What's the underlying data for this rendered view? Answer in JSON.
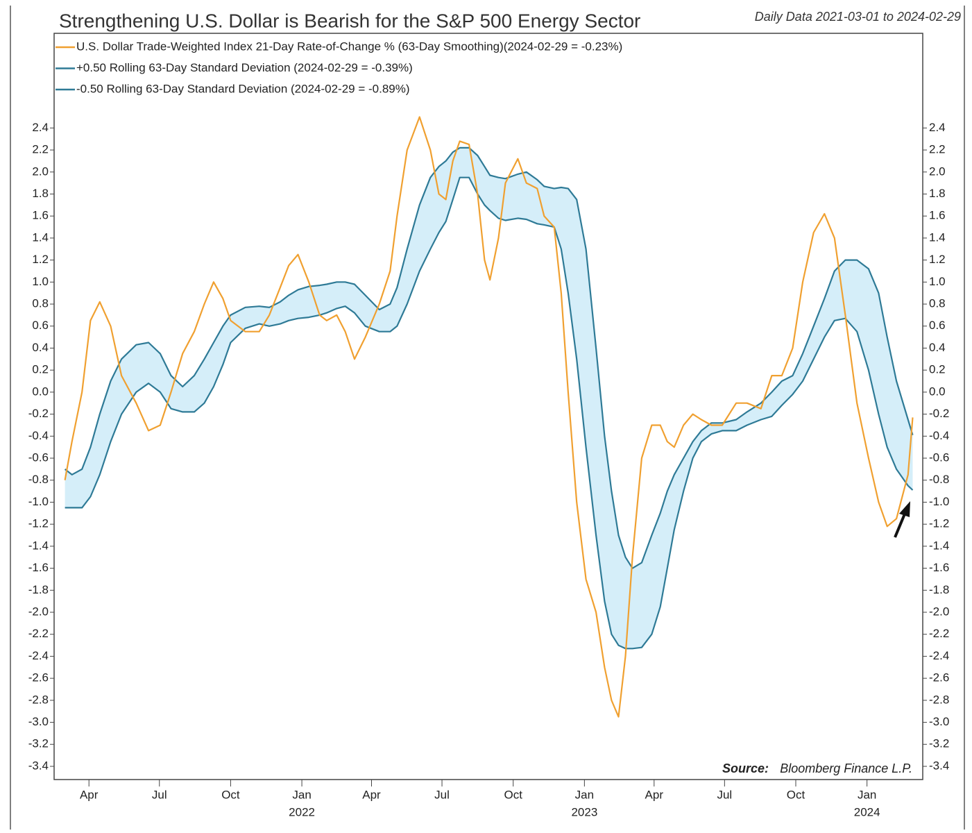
{
  "chart_data": {
    "type": "line",
    "title": "Strengthening U.S. Dollar is Bearish for the S&P 500 Energy Sector",
    "subtitle": "Daily Data 2021-03-01 to 2024-02-29",
    "source_label": "Source:",
    "source": "Bloomberg Finance L.P.",
    "x": [
      "2021-03-01",
      "2021-03-10",
      "2021-03-23",
      "2021-04-03",
      "2021-04-15",
      "2021-04-29",
      "2021-05-13",
      "2021-06-01",
      "2021-06-17",
      "2021-07-02",
      "2021-07-16",
      "2021-07-31",
      "2021-08-15",
      "2021-08-28",
      "2021-09-09",
      "2021-09-21",
      "2021-10-01",
      "2021-10-20",
      "2021-11-07",
      "2021-11-20",
      "2021-12-04",
      "2021-12-15",
      "2021-12-27",
      "2022-01-10",
      "2022-01-24",
      "2022-02-02",
      "2022-02-15",
      "2022-02-26",
      "2022-03-10",
      "2022-03-24",
      "2022-04-11",
      "2022-04-25",
      "2022-05-04",
      "2022-05-17",
      "2022-06-02",
      "2022-06-16",
      "2022-06-27",
      "2022-07-06",
      "2022-07-15",
      "2022-07-24",
      "2022-08-05",
      "2022-08-16",
      "2022-08-25",
      "2022-09-01",
      "2022-09-12",
      "2022-09-21",
      "2022-10-07",
      "2022-10-18",
      "2022-11-01",
      "2022-11-10",
      "2022-11-23",
      "2022-12-02",
      "2022-12-11",
      "2022-12-22",
      "2023-01-03",
      "2023-01-16",
      "2023-01-27",
      "2023-02-05",
      "2023-02-14",
      "2023-02-23",
      "2023-03-04",
      "2023-03-16",
      "2023-03-29",
      "2023-04-09",
      "2023-04-18",
      "2023-04-27",
      "2023-05-09",
      "2023-05-21",
      "2023-06-01",
      "2023-06-14",
      "2023-06-28",
      "2023-07-16",
      "2023-07-30",
      "2023-08-17",
      "2023-08-31",
      "2023-09-13",
      "2023-09-27",
      "2023-10-10",
      "2023-10-24",
      "2023-11-07",
      "2023-11-20",
      "2023-12-04",
      "2023-12-19",
      "2024-01-03",
      "2024-01-16",
      "2024-01-27",
      "2024-02-08",
      "2024-02-23",
      "2024-02-29"
    ],
    "series": [
      {
        "name": "U.S. Dollar Trade-Weighted Index 21-Day Rate-of-Change % (63-Day Smoothing)(2024-02-29 = -0.23%)",
        "color": "#f0a030",
        "values": [
          -0.8,
          -0.45,
          0.0,
          0.65,
          0.82,
          0.6,
          0.15,
          -0.1,
          -0.35,
          -0.3,
          0.0,
          0.35,
          0.55,
          0.8,
          1.0,
          0.85,
          0.65,
          0.55,
          0.55,
          0.7,
          0.95,
          1.15,
          1.25,
          1.0,
          0.7,
          0.65,
          0.7,
          0.55,
          0.3,
          0.5,
          0.8,
          1.1,
          1.6,
          2.2,
          2.5,
          2.2,
          1.8,
          1.75,
          2.1,
          2.28,
          2.25,
          1.8,
          1.2,
          1.02,
          1.4,
          1.9,
          2.12,
          1.9,
          1.85,
          1.6,
          1.5,
          0.9,
          0.0,
          -1.0,
          -1.7,
          -2.0,
          -2.5,
          -2.8,
          -2.95,
          -2.4,
          -1.5,
          -0.6,
          -0.3,
          -0.3,
          -0.45,
          -0.5,
          -0.3,
          -0.2,
          -0.25,
          -0.3,
          -0.3,
          -0.1,
          -0.1,
          -0.15,
          0.15,
          0.15,
          0.4,
          1.0,
          1.45,
          1.62,
          1.4,
          0.7,
          -0.1,
          -0.6,
          -1.0,
          -1.22,
          -1.15,
          -0.75,
          -0.23
        ]
      },
      {
        "name": "+0.50 Rolling 63-Day Standard Deviation (2024-02-29 = -0.39%)",
        "color": "#2e7a96",
        "values": [
          -0.7,
          -0.75,
          -0.7,
          -0.5,
          -0.2,
          0.1,
          0.3,
          0.43,
          0.45,
          0.35,
          0.15,
          0.05,
          0.15,
          0.3,
          0.45,
          0.6,
          0.7,
          0.77,
          0.78,
          0.77,
          0.82,
          0.88,
          0.93,
          0.96,
          0.97,
          0.98,
          1.0,
          1.0,
          0.98,
          0.88,
          0.75,
          0.8,
          0.95,
          1.3,
          1.7,
          1.95,
          2.05,
          2.1,
          2.18,
          2.22,
          2.22,
          2.15,
          2.05,
          1.97,
          1.95,
          1.94,
          1.98,
          2.0,
          1.93,
          1.87,
          1.85,
          1.86,
          1.85,
          1.75,
          1.3,
          0.4,
          -0.4,
          -0.9,
          -1.3,
          -1.5,
          -1.6,
          -1.55,
          -1.3,
          -1.1,
          -0.9,
          -0.75,
          -0.6,
          -0.45,
          -0.35,
          -0.28,
          -0.28,
          -0.25,
          -0.18,
          -0.1,
          0.0,
          0.1,
          0.15,
          0.35,
          0.6,
          0.85,
          1.1,
          1.2,
          1.2,
          1.12,
          0.9,
          0.5,
          0.1,
          -0.25,
          -0.39
        ]
      },
      {
        "name": "-0.50 Rolling 63-Day Standard Deviation (2024-02-29 = -0.89%)",
        "color": "#2e7a96",
        "values": [
          -1.05,
          -1.05,
          -1.05,
          -0.95,
          -0.75,
          -0.45,
          -0.2,
          0.0,
          0.08,
          0.0,
          -0.15,
          -0.18,
          -0.18,
          -0.1,
          0.05,
          0.25,
          0.45,
          0.58,
          0.62,
          0.6,
          0.62,
          0.65,
          0.67,
          0.68,
          0.7,
          0.72,
          0.76,
          0.78,
          0.72,
          0.6,
          0.55,
          0.55,
          0.6,
          0.8,
          1.1,
          1.3,
          1.45,
          1.55,
          1.75,
          1.95,
          1.95,
          1.8,
          1.7,
          1.65,
          1.58,
          1.56,
          1.58,
          1.57,
          1.53,
          1.52,
          1.5,
          1.3,
          0.9,
          0.3,
          -0.5,
          -1.3,
          -1.9,
          -2.2,
          -2.3,
          -2.33,
          -2.33,
          -2.32,
          -2.2,
          -1.95,
          -1.6,
          -1.25,
          -0.9,
          -0.6,
          -0.45,
          -0.38,
          -0.35,
          -0.35,
          -0.3,
          -0.25,
          -0.22,
          -0.12,
          -0.02,
          0.1,
          0.3,
          0.5,
          0.65,
          0.67,
          0.55,
          0.2,
          -0.2,
          -0.5,
          -0.7,
          -0.85,
          -0.89
        ]
      }
    ],
    "band_between": [
      1,
      2
    ],
    "band_color": "#d5eef9",
    "xlim": [
      "2021-02-15",
      "2024-03-13"
    ],
    "xticks": [
      {
        "value": "2021-04-01",
        "label": "Apr"
      },
      {
        "value": "2021-07-01",
        "label": "Jul"
      },
      {
        "value": "2021-10-01",
        "label": "Oct"
      },
      {
        "value": "2022-01-01",
        "label": "Jan"
      },
      {
        "value": "2022-04-01",
        "label": "Apr"
      },
      {
        "value": "2022-07-01",
        "label": "Jul"
      },
      {
        "value": "2022-10-01",
        "label": "Oct"
      },
      {
        "value": "2023-01-01",
        "label": "Jan"
      },
      {
        "value": "2023-04-01",
        "label": "Apr"
      },
      {
        "value": "2023-07-01",
        "label": "Jul"
      },
      {
        "value": "2023-10-01",
        "label": "Oct"
      },
      {
        "value": "2024-01-01",
        "label": "Jan"
      }
    ],
    "xtick_years": [
      {
        "value": "2022-01-01",
        "label": "2022"
      },
      {
        "value": "2023-01-01",
        "label": "2023"
      },
      {
        "value": "2024-01-01",
        "label": "2024"
      }
    ],
    "ylim": [
      -3.52,
      3.26
    ],
    "yticks": [
      -3.4,
      -3.2,
      {
        "value": -3,
        "label": "-3.0"
      },
      -2.8,
      -2.6,
      -2.4,
      -2.2,
      {
        "value": -2,
        "label": "-2.0"
      },
      -1.8,
      -1.6,
      -1.4,
      -1.2,
      {
        "value": -1,
        "label": "-1.0"
      },
      -0.8,
      -0.6,
      -0.4,
      -0.2,
      {
        "value": 0,
        "label": "0.0"
      },
      0.2,
      0.4,
      0.6,
      0.8,
      {
        "value": 1,
        "label": "1.0"
      },
      1.2,
      1.4,
      1.6,
      1.8,
      {
        "value": 2,
        "label": "2.0"
      },
      2.2,
      2.4
    ],
    "y_axis_sides": [
      "left",
      "right"
    ]
  }
}
